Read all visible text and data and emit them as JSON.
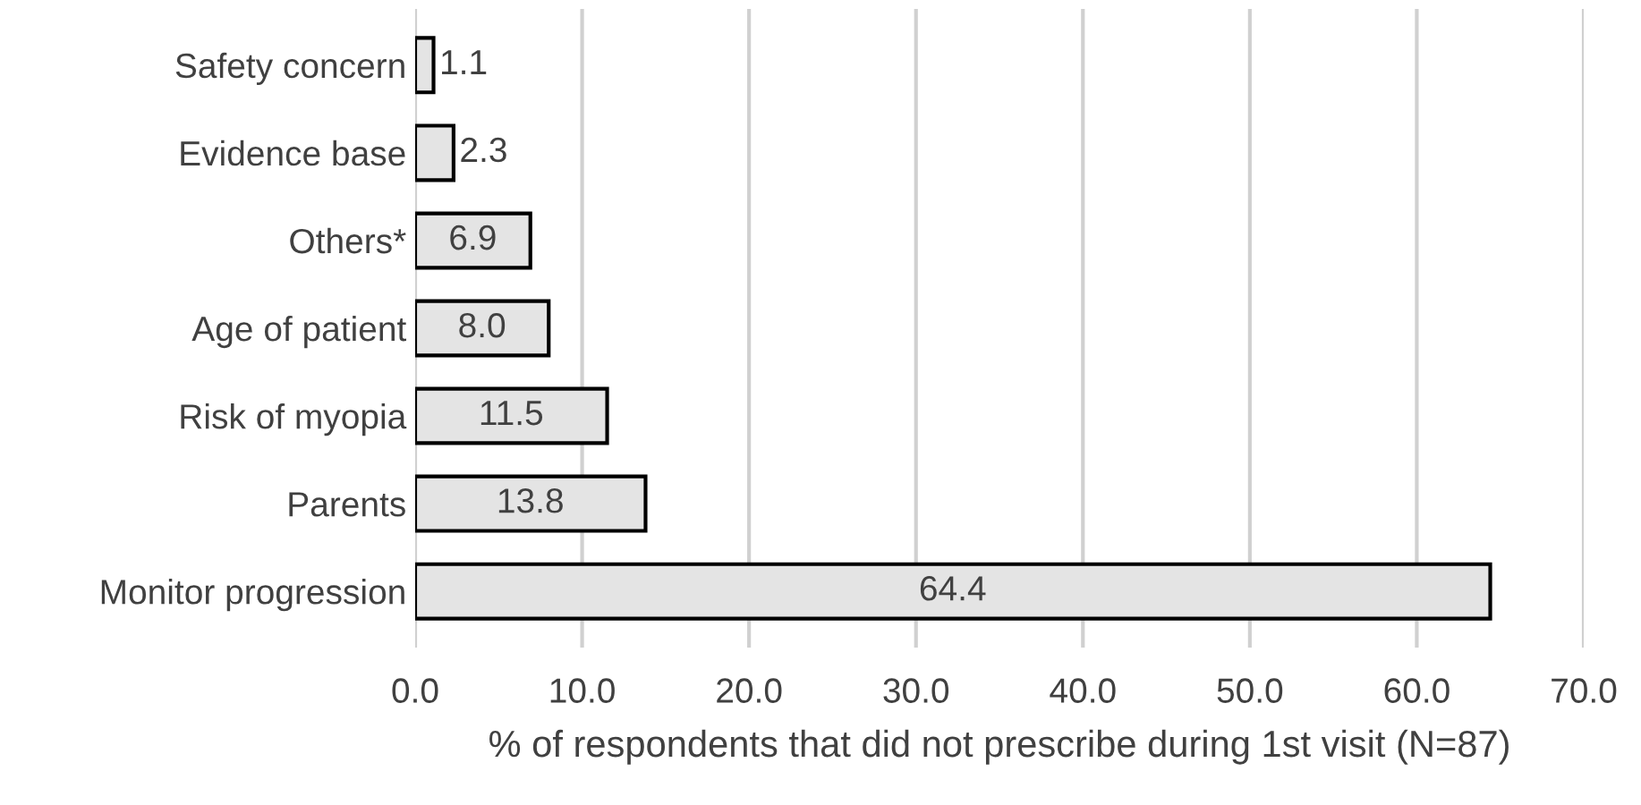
{
  "chart_data": {
    "type": "bar",
    "orientation": "horizontal",
    "xlabel": "% of respondents that did not prescribe during 1st visit (N=87)",
    "categories": [
      "Safety concern",
      "Evidence base",
      "Others*",
      "Age of patient",
      "Risk of myopia",
      "Parents",
      "Monitor progression"
    ],
    "values": [
      1.1,
      2.3,
      6.9,
      8.0,
      11.5,
      13.8,
      64.4
    ],
    "value_labels": [
      "1.1",
      "2.3",
      "6.9",
      "8.0",
      "11.5",
      "13.8",
      "64.4"
    ],
    "color": "#e4e4e4",
    "xlim": [
      0,
      70
    ],
    "xticks": [
      {
        "value": 0,
        "label": "0.0"
      },
      {
        "value": 10,
        "label": "10.0"
      },
      {
        "value": 20,
        "label": "20.0"
      },
      {
        "value": 30,
        "label": "30.0"
      },
      {
        "value": 40,
        "label": "40.0"
      },
      {
        "value": 50,
        "label": "50.0"
      },
      {
        "value": 60,
        "label": "60.0"
      },
      {
        "value": 70,
        "label": "70.0"
      }
    ],
    "grid": "x"
  }
}
